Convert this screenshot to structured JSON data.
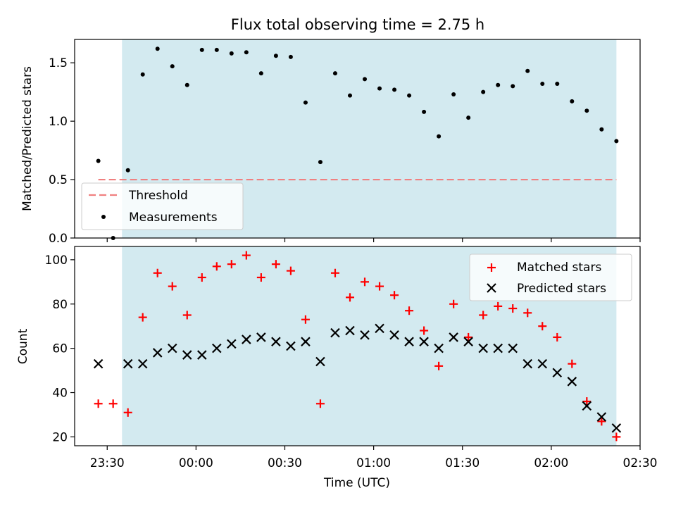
{
  "chart_data": [
    {
      "type": "scatter",
      "title": "Flux total observing time = 2.75 h",
      "ylabel": "Matched/Predicted stars",
      "xlabel": "",
      "xlim": [
        "23:19",
        "02:30"
      ],
      "ylim": [
        0,
        1.7
      ],
      "yticks": [
        "0.0",
        "0.5",
        "1.0",
        "1.5"
      ],
      "grid": false,
      "legend_position": "lower-left",
      "shaded_interval": [
        "23:35",
        "02:22"
      ],
      "shade_color": "#d3eaf0",
      "threshold": {
        "name": "Threshold",
        "value": 0.5,
        "x_range": [
          "23:27",
          "02:22"
        ],
        "color": "#f08080",
        "style": "dashed"
      },
      "series": [
        {
          "name": "Measurements",
          "color": "#000000",
          "marker": "dot",
          "x": [
            "23:27",
            "23:32",
            "23:37",
            "23:42",
            "23:47",
            "23:52",
            "23:57",
            "00:02",
            "00:07",
            "00:12",
            "00:17",
            "00:22",
            "00:27",
            "00:32",
            "00:37",
            "00:42",
            "00:47",
            "00:52",
            "00:57",
            "01:02",
            "01:07",
            "01:12",
            "01:17",
            "01:22",
            "01:27",
            "01:32",
            "01:37",
            "01:42",
            "01:47",
            "01:52",
            "01:57",
            "02:02",
            "02:07",
            "02:12",
            "02:17",
            "02:22"
          ],
          "y": [
            0.66,
            0.0,
            0.58,
            1.4,
            1.62,
            1.47,
            1.31,
            1.61,
            1.61,
            1.58,
            1.59,
            1.41,
            1.56,
            1.55,
            1.16,
            0.65,
            1.41,
            1.22,
            1.36,
            1.28,
            1.27,
            1.22,
            1.08,
            0.87,
            1.23,
            1.03,
            1.25,
            1.31,
            1.3,
            1.43,
            1.32,
            1.32,
            1.17,
            1.09,
            0.93,
            0.83
          ]
        }
      ]
    },
    {
      "type": "scatter",
      "title": "",
      "ylabel": "Count",
      "xlabel": "Time (UTC)",
      "xlim": [
        "23:19",
        "02:30"
      ],
      "ylim": [
        16,
        106
      ],
      "yticks": [
        "20",
        "40",
        "60",
        "80",
        "100"
      ],
      "xticks": [
        "23:30",
        "00:00",
        "00:30",
        "01:00",
        "01:30",
        "02:00",
        "02:30"
      ],
      "grid": false,
      "legend_position": "upper-right",
      "shaded_interval": [
        "23:35",
        "02:22"
      ],
      "shade_color": "#d3eaf0",
      "series": [
        {
          "name": "Matched stars",
          "color": "#ff0000",
          "marker": "plus",
          "x": [
            "23:27",
            "23:32",
            "23:37",
            "23:42",
            "23:47",
            "23:52",
            "23:57",
            "00:02",
            "00:07",
            "00:12",
            "00:17",
            "00:22",
            "00:27",
            "00:32",
            "00:37",
            "00:42",
            "00:47",
            "00:52",
            "00:57",
            "01:02",
            "01:07",
            "01:12",
            "01:17",
            "01:22",
            "01:27",
            "01:32",
            "01:37",
            "01:42",
            "01:47",
            "01:52",
            "01:57",
            "02:02",
            "02:07",
            "02:12",
            "02:17",
            "02:22"
          ],
          "y": [
            35,
            35,
            31,
            74,
            94,
            88,
            75,
            92,
            97,
            98,
            102,
            92,
            98,
            95,
            73,
            35,
            94,
            83,
            90,
            88,
            84,
            77,
            68,
            52,
            80,
            65,
            75,
            79,
            78,
            76,
            70,
            65,
            53,
            36,
            27,
            20
          ]
        },
        {
          "name": "Predicted stars",
          "color": "#000000",
          "marker": "x",
          "x": [
            "23:27",
            "23:37",
            "23:42",
            "23:47",
            "23:52",
            "23:57",
            "00:02",
            "00:07",
            "00:12",
            "00:17",
            "00:22",
            "00:27",
            "00:32",
            "00:37",
            "00:42",
            "00:47",
            "00:52",
            "00:57",
            "01:02",
            "01:07",
            "01:12",
            "01:17",
            "01:22",
            "01:27",
            "01:32",
            "01:37",
            "01:42",
            "01:47",
            "01:52",
            "01:57",
            "02:02",
            "02:07",
            "02:12",
            "02:17",
            "02:22"
          ],
          "y": [
            53,
            53,
            53,
            58,
            60,
            57,
            57,
            60,
            62,
            64,
            65,
            63,
            61,
            63,
            54,
            67,
            68,
            66,
            69,
            66,
            63,
            63,
            60,
            65,
            63,
            60,
            60,
            60,
            53,
            53,
            49,
            45,
            34,
            29,
            24
          ]
        }
      ]
    }
  ]
}
